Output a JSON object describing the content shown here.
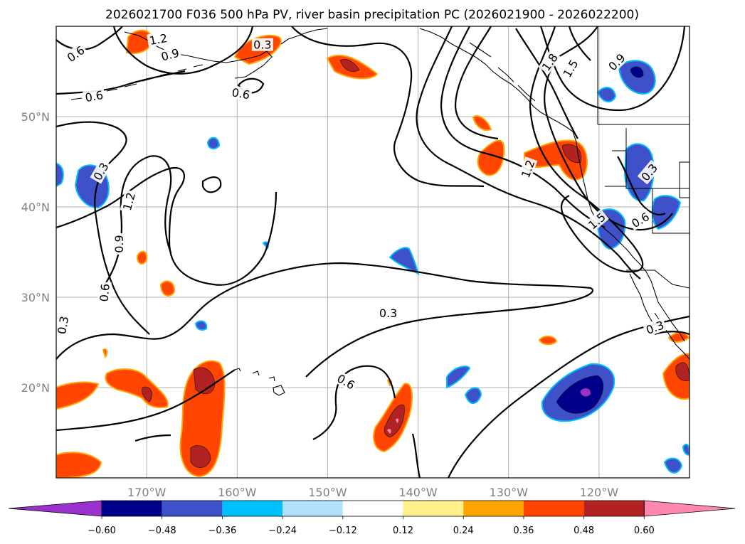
{
  "title": "2026021700 F036 500 hPa PV, river basin precipitation PC (2026021900 - 2026022200)",
  "map": {
    "lon_range": [
      -180,
      -110
    ],
    "lat_range": [
      10,
      60
    ],
    "lon_ticks": [
      {
        "value": -170,
        "label": "170°W"
      },
      {
        "value": -160,
        "label": "160°W"
      },
      {
        "value": -150,
        "label": "150°W"
      },
      {
        "value": -140,
        "label": "140°W"
      },
      {
        "value": -130,
        "label": "130°W"
      },
      {
        "value": -120,
        "label": "120°W"
      }
    ],
    "lat_ticks": [
      {
        "value": 50,
        "label": "50°N"
      },
      {
        "value": 40,
        "label": "40°N"
      },
      {
        "value": 30,
        "label": "30°N"
      },
      {
        "value": 20,
        "label": "20°N"
      }
    ]
  },
  "contour_labels": [
    {
      "text": "0.6",
      "lon": -177.8,
      "lat": 56.9,
      "angle": -35
    },
    {
      "text": "1.2",
      "lon": -168.7,
      "lat": 58.5,
      "angle": -10
    },
    {
      "text": "0.9",
      "lon": -167.4,
      "lat": 56.8,
      "angle": -15
    },
    {
      "text": "0.3",
      "lon": -157.2,
      "lat": 57.9,
      "angle": 0
    },
    {
      "text": "0.6",
      "lon": -175.8,
      "lat": 52.2,
      "angle": -10
    },
    {
      "text": "0.6",
      "lon": -159.6,
      "lat": 52.5,
      "angle": 10
    },
    {
      "text": "0.3",
      "lon": -175.0,
      "lat": 43.9,
      "angle": -60
    },
    {
      "text": "1.2",
      "lon": -171.9,
      "lat": 40.6,
      "angle": -75
    },
    {
      "text": "0.9",
      "lon": -173.0,
      "lat": 35.9,
      "angle": -90
    },
    {
      "text": "0.6",
      "lon": -174.6,
      "lat": 30.5,
      "angle": -85
    },
    {
      "text": "0.3",
      "lon": -179.2,
      "lat": 26.9,
      "angle": -80
    },
    {
      "text": "1.8",
      "lon": -125.4,
      "lat": 56.0,
      "angle": -55
    },
    {
      "text": "1.5",
      "lon": -123.1,
      "lat": 55.3,
      "angle": -60
    },
    {
      "text": "0.9",
      "lon": -118.0,
      "lat": 56.0,
      "angle": -45
    },
    {
      "text": "1.2",
      "lon": -127.8,
      "lat": 44.2,
      "angle": -70
    },
    {
      "text": "0.3",
      "lon": -114.4,
      "lat": 43.8,
      "angle": -50
    },
    {
      "text": "1.5",
      "lon": -120.2,
      "lat": 38.4,
      "angle": -40
    },
    {
      "text": "0.6",
      "lon": -115.4,
      "lat": 38.5,
      "angle": -30
    },
    {
      "text": "0.3",
      "lon": -143.3,
      "lat": 28.2,
      "angle": 0
    },
    {
      "text": "0.3",
      "lon": -113.8,
      "lat": 26.6,
      "angle": -20
    },
    {
      "text": "0.6",
      "lon": -148.0,
      "lat": 20.6,
      "angle": 30
    }
  ],
  "colorbar": {
    "colors": [
      "#9932cc",
      "#00008b",
      "#3f51c8",
      "#00bfff",
      "#b0e2ff",
      "#ffffff",
      "#fff08c",
      "#ffa500",
      "#ff4500",
      "#b22222",
      "#ff88b0"
    ],
    "ticks": [
      "−0.60",
      "−0.48",
      "−0.36",
      "−0.24",
      "−0.12",
      "0.12",
      "0.24",
      "0.36",
      "0.48",
      "0.60"
    ]
  }
}
